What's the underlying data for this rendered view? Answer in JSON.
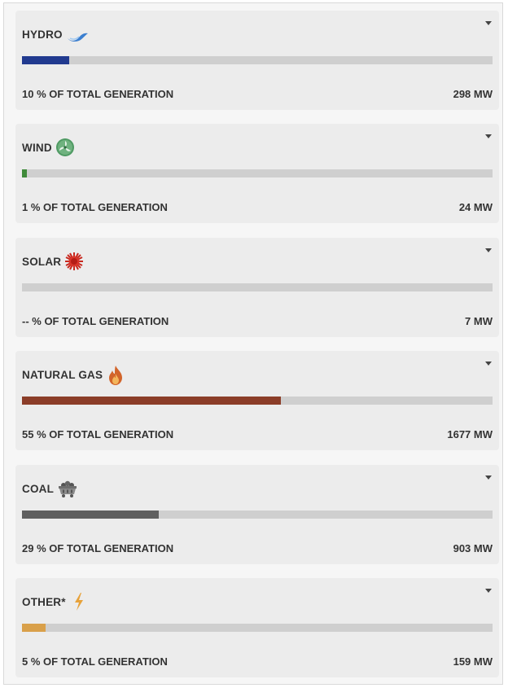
{
  "sources": [
    {
      "title": "HYDRO",
      "icon": "water-wave-icon",
      "share": 0.1,
      "color": "#213a8f",
      "pct_label": "10 % OF TOTAL GENERATION",
      "mw_label": "298 MW"
    },
    {
      "title": "WIND",
      "icon": "wind-turbine-icon",
      "share": 0.01,
      "color": "#3f8a3a",
      "pct_label": "1 % OF TOTAL GENERATION",
      "mw_label": "24 MW"
    },
    {
      "title": "SOLAR",
      "icon": "sun-icon",
      "share": 0.0,
      "color": "#cc3322",
      "pct_label": "-- % OF TOTAL GENERATION",
      "mw_label": "7 MW"
    },
    {
      "title": "NATURAL GAS",
      "icon": "flame-icon",
      "share": 0.55,
      "color": "#8b3d28",
      "pct_label": "55 % OF TOTAL GENERATION",
      "mw_label": "1677 MW"
    },
    {
      "title": "COAL",
      "icon": "coal-cart-icon",
      "share": 0.29,
      "color": "#5f5f5f",
      "pct_label": "29 % OF TOTAL GENERATION",
      "mw_label": "903 MW"
    },
    {
      "title": "OTHER*",
      "icon": "lightning-bolt-icon",
      "share": 0.05,
      "color": "#d9a04a",
      "pct_label": "5 % OF TOTAL GENERATION",
      "mw_label": "159 MW"
    }
  ]
}
